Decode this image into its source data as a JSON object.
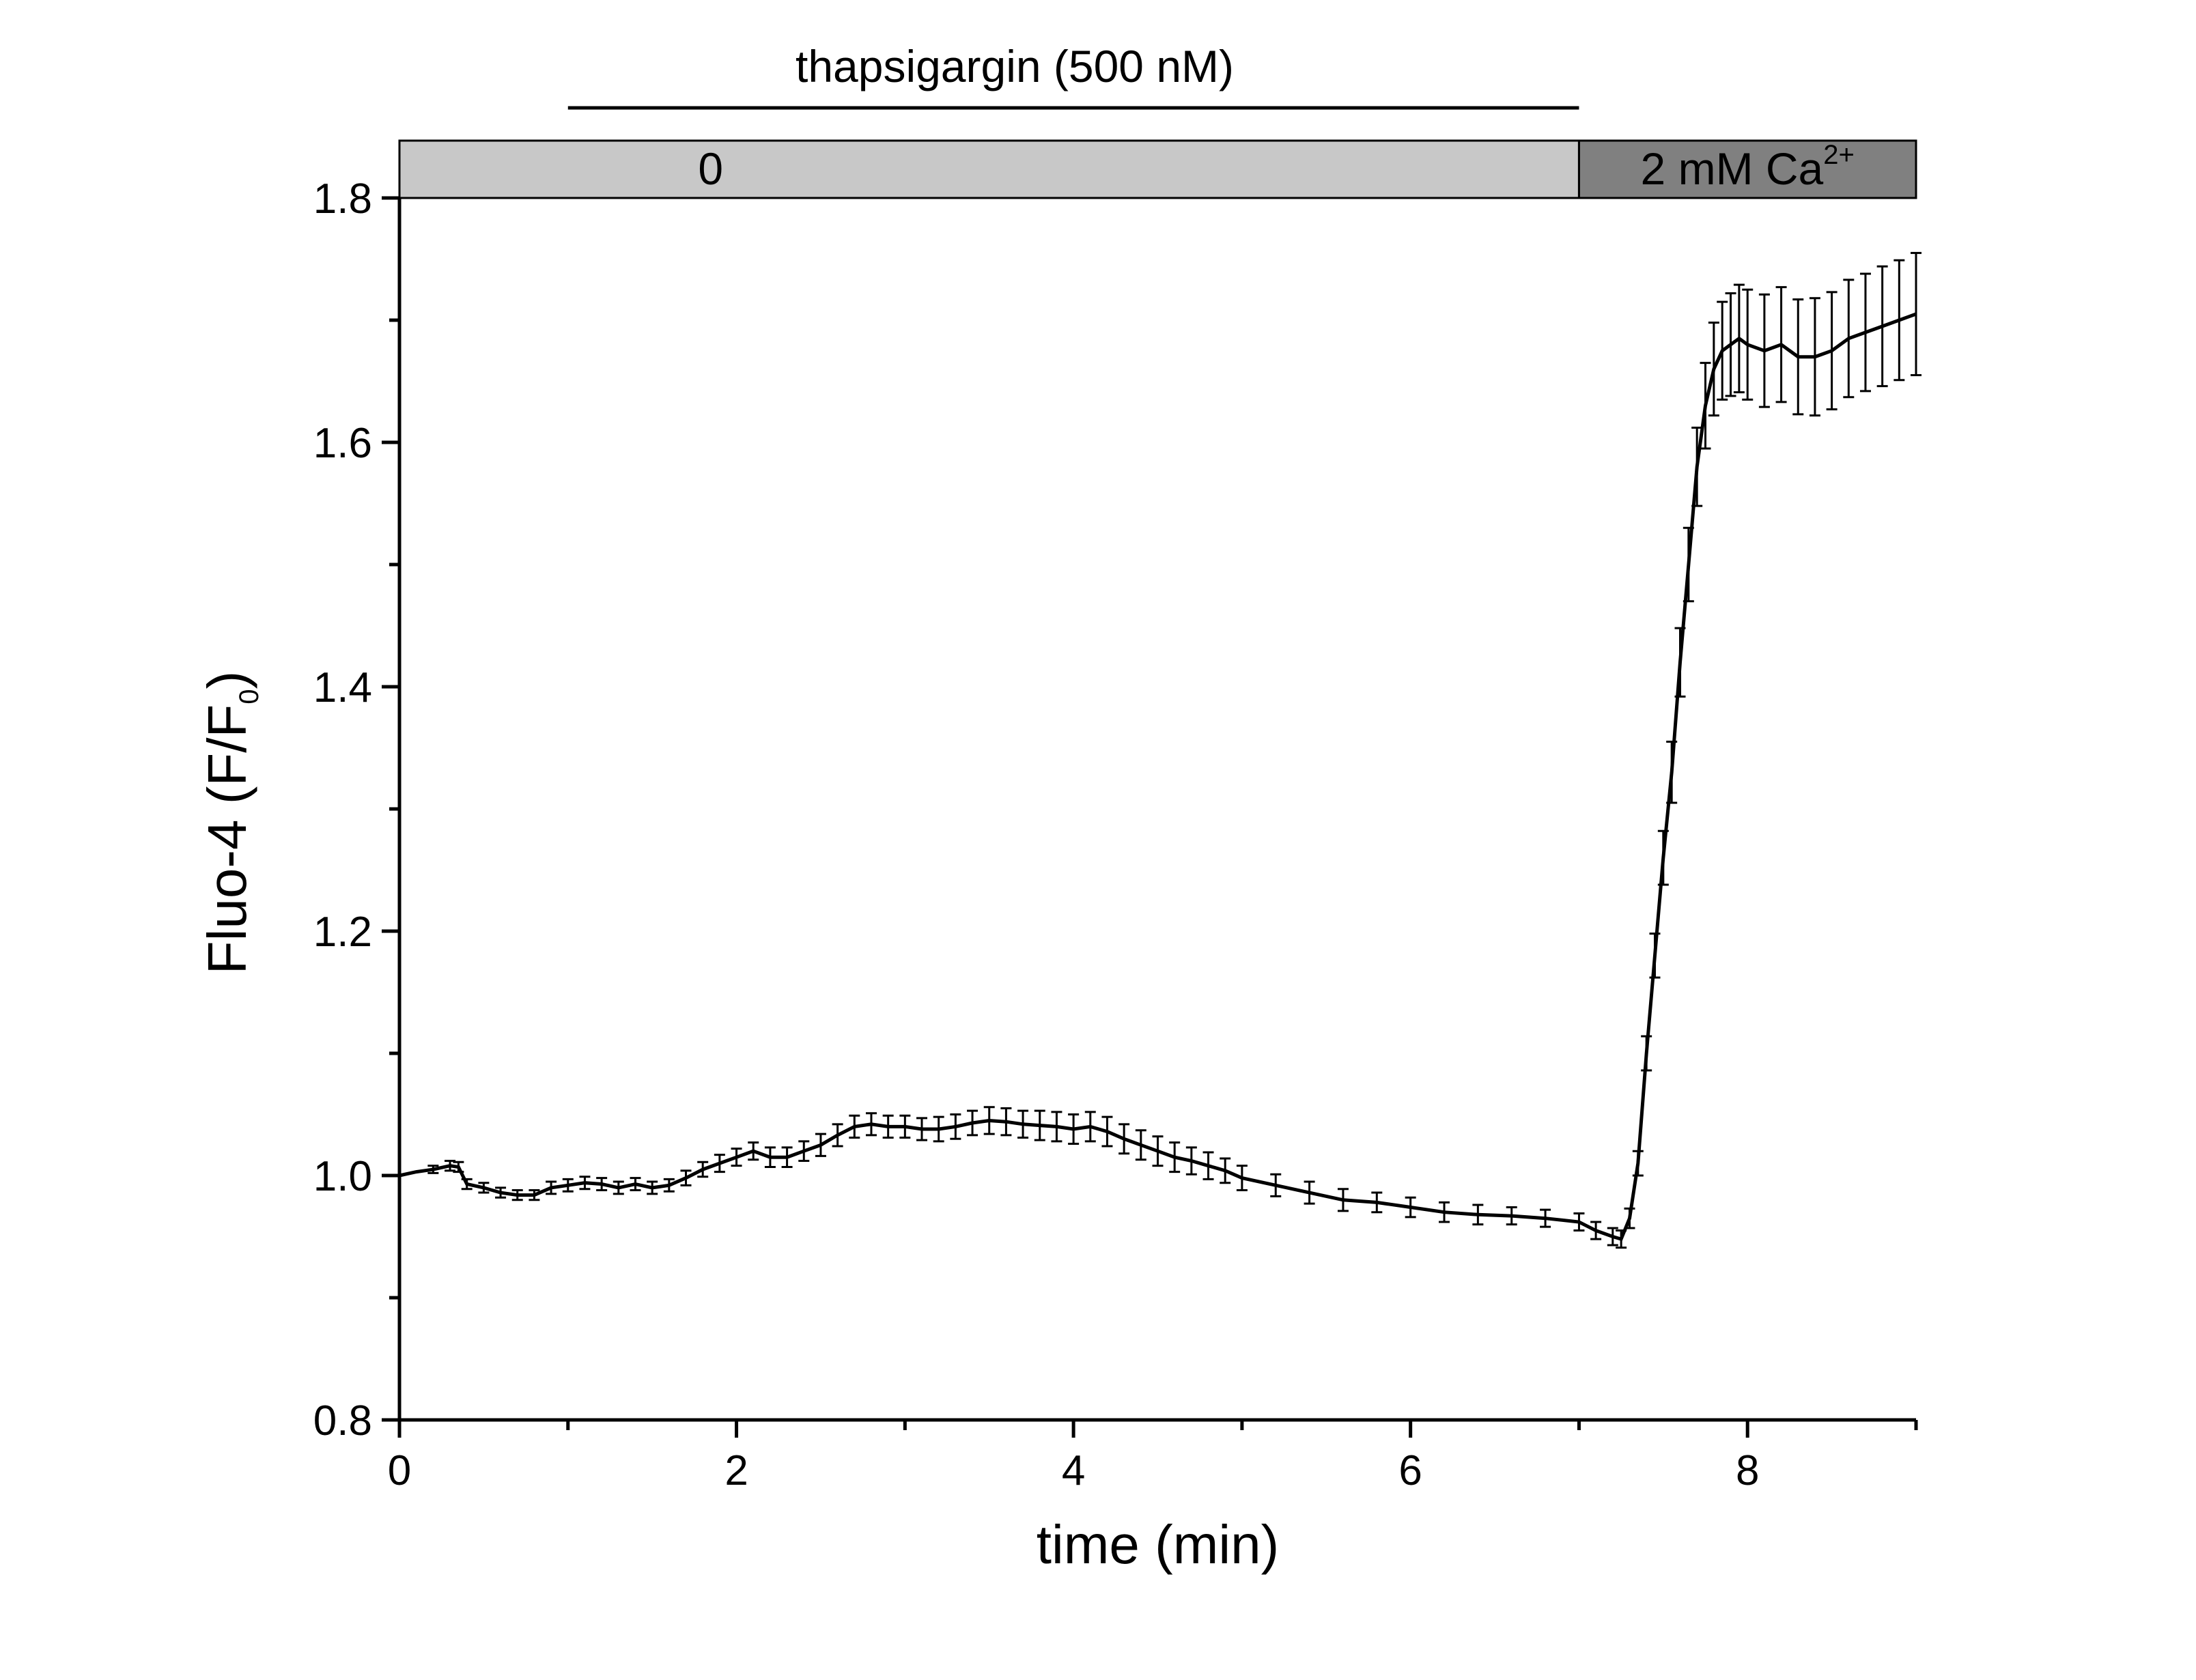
{
  "chart_data": {
    "type": "line",
    "xlabel": "time (min)",
    "ylabel": "Fluo-4 (F/F",
    "ylabel_sub": "0",
    "ylabel_close": ")",
    "xlim": [
      0,
      9
    ],
    "ylim": [
      0.8,
      1.8
    ],
    "x_ticks": [
      0,
      2,
      4,
      6,
      8
    ],
    "x_minor_ticks": [
      1,
      3,
      5,
      7,
      9
    ],
    "y_ticks": [
      0.8,
      1.0,
      1.2,
      1.4,
      1.6,
      1.8
    ],
    "y_minor_ticks": [
      0.9,
      1.1,
      1.3,
      1.5,
      1.7
    ],
    "grid": false,
    "legend": "none",
    "line_color": "#000000",
    "annotations": {
      "drug_label": "thapsigargin (500 nM)",
      "drug_start": 1.0,
      "drug_end": 7.0,
      "bars": [
        {
          "label": "0",
          "start": 0,
          "end": 7.0,
          "color": "#c8c8c8"
        },
        {
          "label": "2 mM Ca",
          "sup": "2+",
          "start": 7.0,
          "end": 9.0,
          "color": "#808080"
        }
      ]
    },
    "series": [
      {
        "x": [
          0,
          0.1,
          0.2,
          0.3,
          0.35,
          0.4,
          0.5,
          0.6,
          0.7,
          0.8,
          0.9,
          1.0,
          1.1,
          1.2,
          1.3,
          1.4,
          1.5,
          1.6,
          1.7,
          1.8,
          1.9,
          2.0,
          2.1,
          2.2,
          2.3,
          2.4,
          2.5,
          2.6,
          2.7,
          2.8,
          2.9,
          3.0,
          3.1,
          3.2,
          3.3,
          3.4,
          3.5,
          3.6,
          3.7,
          3.8,
          3.9,
          4.0,
          4.1,
          4.2,
          4.3,
          4.4,
          4.5,
          4.6,
          4.7,
          4.8,
          4.9,
          5.0,
          5.2,
          5.4,
          5.6,
          5.8,
          6.0,
          6.2,
          6.4,
          6.6,
          6.8,
          7.0,
          7.1,
          7.2,
          7.25,
          7.3,
          7.35,
          7.4,
          7.45,
          7.5,
          7.55,
          7.6,
          7.65,
          7.7,
          7.75,
          7.8,
          7.85,
          7.9,
          7.95,
          8.0,
          8.1,
          8.2,
          8.3,
          8.4,
          8.5,
          8.6,
          8.7,
          8.8,
          8.9,
          9.0
        ],
        "y": [
          1.0,
          1.003,
          1.005,
          1.008,
          1.007,
          0.993,
          0.99,
          0.986,
          0.984,
          0.984,
          0.99,
          0.992,
          0.994,
          0.993,
          0.99,
          0.993,
          0.99,
          0.992,
          0.998,
          1.005,
          1.01,
          1.015,
          1.02,
          1.015,
          1.015,
          1.02,
          1.025,
          1.033,
          1.04,
          1.042,
          1.04,
          1.04,
          1.038,
          1.038,
          1.04,
          1.043,
          1.045,
          1.044,
          1.042,
          1.041,
          1.04,
          1.038,
          1.04,
          1.036,
          1.03,
          1.025,
          1.02,
          1.015,
          1.012,
          1.008,
          1.004,
          0.998,
          0.992,
          0.986,
          0.98,
          0.978,
          0.974,
          0.97,
          0.968,
          0.967,
          0.965,
          0.962,
          0.955,
          0.95,
          0.948,
          0.965,
          1.01,
          1.1,
          1.18,
          1.26,
          1.33,
          1.42,
          1.5,
          1.58,
          1.63,
          1.66,
          1.675,
          1.68,
          1.685,
          1.68,
          1.675,
          1.68,
          1.67,
          1.67,
          1.675,
          1.685,
          1.69,
          1.695,
          1.7,
          1.705
        ],
        "err": [
          0.002,
          0.002,
          0.003,
          0.004,
          0.004,
          0.004,
          0.004,
          0.004,
          0.004,
          0.004,
          0.005,
          0.005,
          0.005,
          0.005,
          0.005,
          0.005,
          0.005,
          0.005,
          0.006,
          0.006,
          0.007,
          0.007,
          0.007,
          0.008,
          0.008,
          0.008,
          0.009,
          0.009,
          0.009,
          0.009,
          0.009,
          0.009,
          0.009,
          0.01,
          0.01,
          0.01,
          0.011,
          0.011,
          0.011,
          0.012,
          0.012,
          0.012,
          0.012,
          0.012,
          0.012,
          0.012,
          0.012,
          0.012,
          0.011,
          0.011,
          0.01,
          0.01,
          0.009,
          0.009,
          0.009,
          0.008,
          0.008,
          0.008,
          0.008,
          0.007,
          0.007,
          0.007,
          0.007,
          0.007,
          0.007,
          0.008,
          0.01,
          0.014,
          0.018,
          0.022,
          0.025,
          0.028,
          0.03,
          0.032,
          0.035,
          0.038,
          0.04,
          0.042,
          0.044,
          0.045,
          0.046,
          0.047,
          0.047,
          0.048,
          0.048,
          0.048,
          0.048,
          0.049,
          0.049,
          0.05
        ]
      }
    ]
  }
}
